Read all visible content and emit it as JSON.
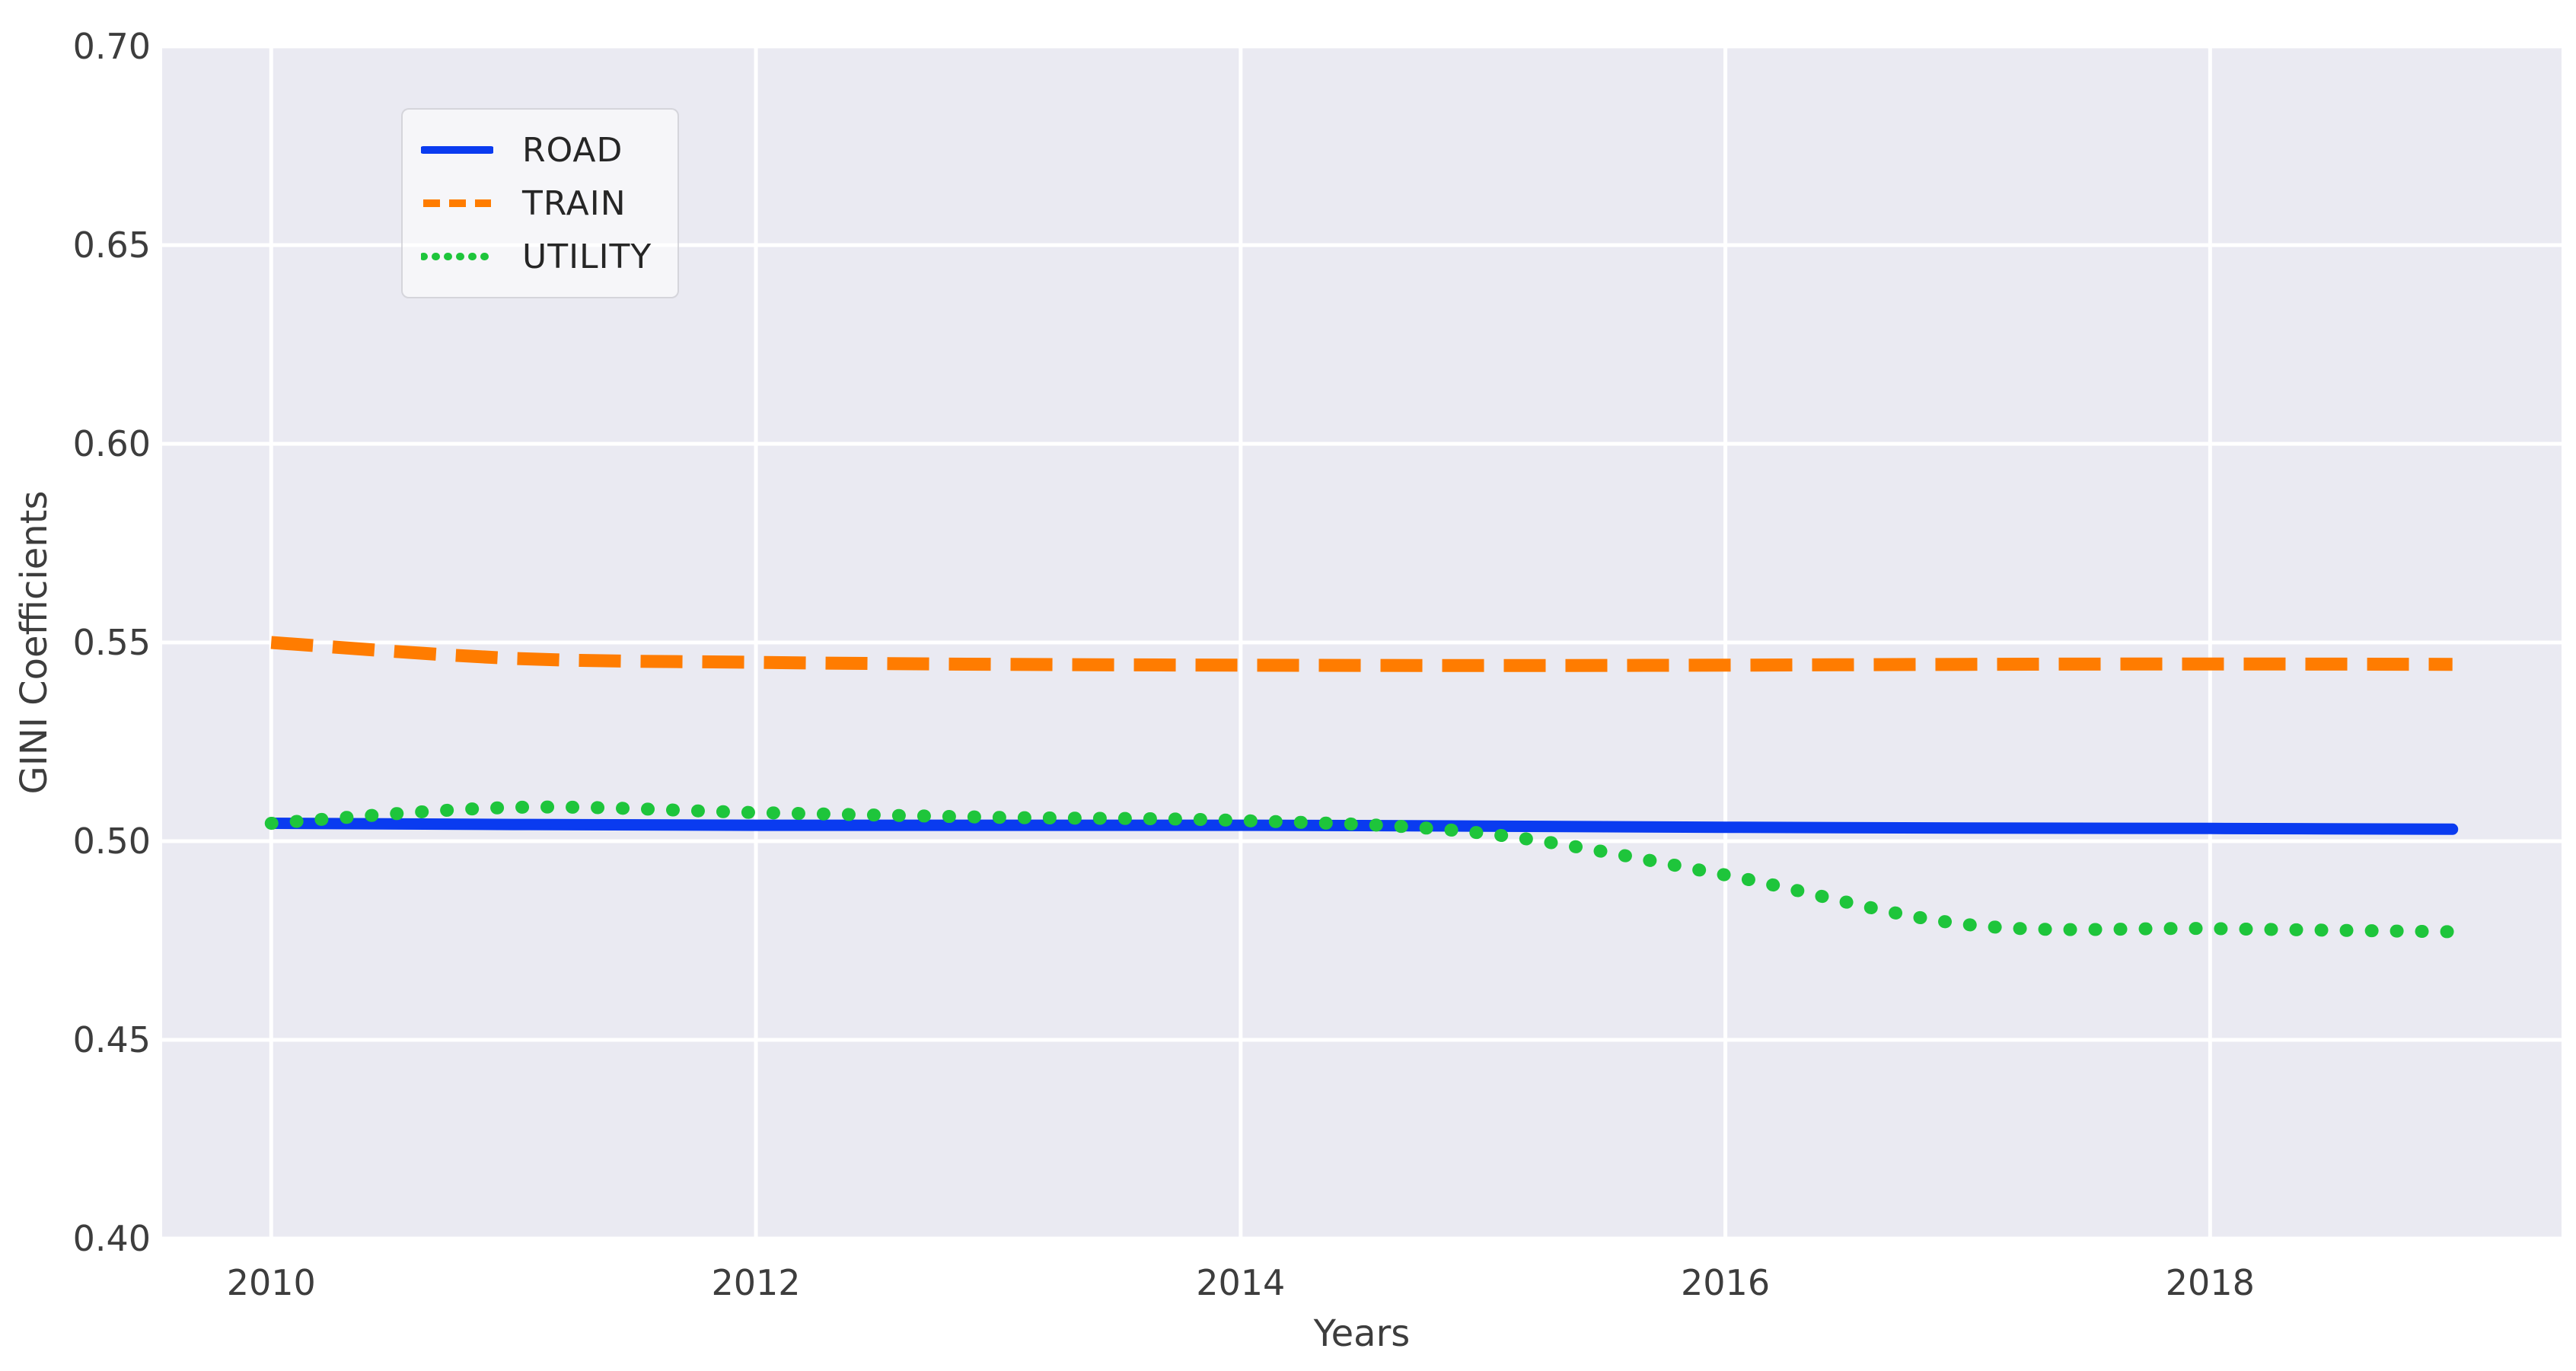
{
  "chart_data": {
    "type": "line",
    "title": "",
    "xlabel": "Years",
    "ylabel": "GINI Coefficients",
    "grid": true,
    "plot_background": "#eaeaf2",
    "gridline_color": "#ffffff",
    "text_color": "#3d3d3d",
    "legend_position": "upper left",
    "xlim": [
      2009.55,
      2019.45
    ],
    "ylim": [
      0.4,
      0.7
    ],
    "xticks": [
      {
        "value": 2010,
        "label": "2010"
      },
      {
        "value": 2012,
        "label": "2012"
      },
      {
        "value": 2014,
        "label": "2014"
      },
      {
        "value": 2016,
        "label": "2016"
      },
      {
        "value": 2018,
        "label": "2018"
      }
    ],
    "yticks": [
      {
        "value": 0.4,
        "label": "0.40"
      },
      {
        "value": 0.45,
        "label": "0.45"
      },
      {
        "value": 0.5,
        "label": "0.50"
      },
      {
        "value": 0.55,
        "label": "0.55"
      },
      {
        "value": 0.6,
        "label": "0.60"
      },
      {
        "value": 0.65,
        "label": "0.65"
      },
      {
        "value": 0.7,
        "label": "0.70"
      }
    ],
    "x": [
      2010,
      2011,
      2012,
      2013,
      2014,
      2015,
      2016,
      2017,
      2018,
      2019
    ],
    "series": [
      {
        "name": "ROAD",
        "color": "#0a3bf0",
        "style": "solid",
        "values": [
          0.5045,
          0.5042,
          0.504,
          0.504,
          0.504,
          0.5038,
          0.5035,
          0.5033,
          0.5032,
          0.503
        ]
      },
      {
        "name": "TRAIN",
        "color": "#ff7c00",
        "style": "dashed",
        "values": [
          0.55,
          0.546,
          0.545,
          0.5445,
          0.5443,
          0.5442,
          0.5443,
          0.5445,
          0.5446,
          0.5445
        ]
      },
      {
        "name": "UTILITY",
        "color": "#1ec53b",
        "style": "dotted",
        "values": [
          0.5045,
          0.5085,
          0.5072,
          0.506,
          0.5052,
          0.502,
          0.4915,
          0.479,
          0.478,
          0.4772
        ]
      }
    ],
    "legend": {
      "entries": [
        {
          "label": "ROAD"
        },
        {
          "label": "TRAIN"
        },
        {
          "label": "UTILITY"
        }
      ]
    }
  }
}
